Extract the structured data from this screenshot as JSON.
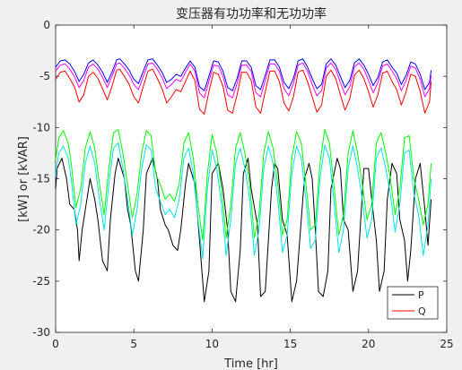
{
  "chart_data": {
    "type": "line",
    "title": "变压器有功功率和无功功率",
    "xlabel": "Time [hr]",
    "ylabel": "[kW] or [kVAR]",
    "xlim": [
      0,
      25
    ],
    "ylim": [
      -30,
      0
    ],
    "xticks": [
      0,
      5,
      10,
      15,
      20,
      25
    ],
    "yticks": [
      0,
      -5,
      -10,
      -15,
      -20,
      -25,
      -30
    ],
    "xtick_labels": [
      "0",
      "5",
      "10",
      "15",
      "20",
      "25"
    ],
    "ytick_labels": [
      "0",
      "-5",
      "-10",
      "-15",
      "-20",
      "-25",
      "-30"
    ],
    "grid": false,
    "legend": {
      "position": "bottom-right",
      "entries": [
        "P",
        "Q"
      ]
    },
    "colors": {
      "P": "#000000",
      "Q": "#ff0000",
      "series3": "#00ff00",
      "series4": "#00e5e5",
      "series5": "#0000ff",
      "series6": "#ff00ff"
    },
    "series": [
      {
        "name": "P",
        "color": "#000000",
        "x": [
          0,
          0.1,
          0.4,
          0.7,
          0.9,
          1.2,
          1.4,
          1.5,
          1.7,
          2.0,
          2.2,
          2.5,
          2.7,
          3.0,
          3.3,
          3.5,
          3.8,
          4.0,
          4.4,
          4.6,
          4.8,
          5.1,
          5.3,
          5.6,
          5.8,
          6.2,
          6.5,
          6.7,
          7.0,
          7.2,
          7.5,
          7.8,
          8.0,
          8.3,
          8.5,
          8.9,
          9.2,
          9.5,
          9.8,
          10.0,
          10.4,
          10.7,
          11.0,
          11.2,
          11.5,
          11.8,
          12.0,
          12.3,
          12.5,
          12.9,
          13.1,
          13.4,
          13.8,
          14.0,
          14.2,
          14.5,
          14.8,
          15.1,
          15.4,
          15.6,
          15.9,
          16.2,
          16.4,
          16.6,
          16.8,
          17.1,
          17.4,
          17.6,
          18.0,
          18.2,
          18.4,
          18.7,
          19.0,
          19.3,
          19.5,
          19.7,
          20.0,
          20.2,
          20.5,
          20.7,
          21.0,
          21.2,
          21.5,
          21.8,
          22.0,
          22.3,
          22.5,
          22.7,
          23.0,
          23.3,
          23.6,
          23.8,
          24.0
        ],
        "y": [
          -16,
          -14,
          -13,
          -15,
          -17.5,
          -18,
          -20,
          -23,
          -20,
          -17,
          -15,
          -17,
          -19,
          -23,
          -24,
          -19,
          -14.5,
          -13,
          -15,
          -18,
          -19.5,
          -24,
          -25,
          -20,
          -14.5,
          -13,
          -15,
          -18,
          -19.5,
          -20,
          -21.5,
          -22,
          -20,
          -15.5,
          -13.5,
          -15.5,
          -21,
          -27,
          -24,
          -14.5,
          -13.5,
          -16,
          -20,
          -26,
          -27,
          -22,
          -14.5,
          -13,
          -16,
          -19.5,
          -26.5,
          -26,
          -16,
          -13.5,
          -14,
          -19,
          -20.5,
          -27,
          -25,
          -21,
          -15,
          -13.5,
          -15,
          -20,
          -26,
          -26.5,
          -24,
          -16,
          -13,
          -14,
          -19,
          -20,
          -26,
          -24,
          -19,
          -14,
          -14,
          -17,
          -21,
          -26,
          -24,
          -17,
          -13.5,
          -14.5,
          -19,
          -21,
          -25,
          -22,
          -15,
          -13.5,
          -18,
          -21.5,
          -17
        ]
      },
      {
        "name": "Q",
        "color": "#ff0000",
        "x": [
          0,
          0.3,
          0.6,
          0.9,
          1.2,
          1.5,
          1.8,
          2.1,
          2.4,
          2.7,
          3.0,
          3.3,
          3.6,
          3.9,
          4.1,
          4.4,
          4.7,
          5.0,
          5.3,
          5.6,
          5.9,
          6.2,
          6.5,
          6.8,
          7.1,
          7.4,
          7.7,
          8.0,
          8.3,
          8.6,
          8.9,
          9.2,
          9.5,
          9.8,
          10.1,
          10.4,
          10.7,
          11.0,
          11.3,
          11.6,
          11.9,
          12.2,
          12.5,
          12.8,
          13.1,
          13.4,
          13.7,
          14.0,
          14.3,
          14.6,
          14.9,
          15.2,
          15.5,
          15.8,
          16.1,
          16.4,
          16.7,
          17.0,
          17.3,
          17.6,
          17.9,
          18.2,
          18.5,
          18.8,
          19.1,
          19.4,
          19.7,
          20.0,
          20.3,
          20.6,
          20.9,
          21.2,
          21.5,
          21.8,
          22.1,
          22.4,
          22.7,
          23.0,
          23.3,
          23.6,
          23.9,
          24.0
        ],
        "y": [
          -5.3,
          -4.6,
          -4.5,
          -5.2,
          -6.0,
          -7.5,
          -6.8,
          -5.0,
          -4.6,
          -5.2,
          -6.2,
          -7.3,
          -6.0,
          -4.4,
          -4.3,
          -5.0,
          -5.8,
          -7.0,
          -7.6,
          -6.0,
          -4.5,
          -4.3,
          -5.2,
          -6.2,
          -7.6,
          -7.0,
          -6.3,
          -6.5,
          -5.5,
          -4.5,
          -5.4,
          -8.2,
          -8.7,
          -6.5,
          -4.6,
          -4.8,
          -6.0,
          -8.3,
          -8.6,
          -6.8,
          -4.6,
          -4.6,
          -5.4,
          -8.0,
          -8.6,
          -6.5,
          -4.5,
          -4.5,
          -5.5,
          -7.6,
          -8.4,
          -7.0,
          -4.6,
          -4.4,
          -5.5,
          -7.0,
          -8.5,
          -7.8,
          -5.0,
          -4.4,
          -5.2,
          -6.8,
          -8.3,
          -7.2,
          -4.9,
          -4.4,
          -5.2,
          -6.5,
          -8.0,
          -6.8,
          -4.7,
          -4.5,
          -5.5,
          -6.3,
          -7.8,
          -6.5,
          -4.8,
          -5.0,
          -6.5,
          -8.6,
          -7.5,
          -5.5
        ]
      },
      {
        "name": "",
        "color": "#00ff00",
        "x": [
          0,
          0.2,
          0.5,
          0.8,
          1.0,
          1.3,
          1.6,
          1.9,
          2.2,
          2.5,
          2.8,
          3.1,
          3.4,
          3.7,
          4.0,
          4.3,
          4.6,
          4.9,
          5.2,
          5.5,
          5.8,
          6.1,
          6.4,
          6.7,
          7.0,
          7.3,
          7.6,
          7.9,
          8.2,
          8.5,
          8.8,
          9.1,
          9.4,
          9.7,
          10.0,
          10.3,
          10.6,
          10.9,
          11.2,
          11.5,
          11.8,
          12.1,
          12.4,
          12.7,
          13.0,
          13.3,
          13.6,
          13.9,
          14.2,
          14.5,
          14.8,
          15.1,
          15.4,
          15.7,
          16.0,
          16.3,
          16.6,
          16.9,
          17.2,
          17.5,
          17.8,
          18.1,
          18.4,
          18.7,
          19.0,
          19.3,
          19.6,
          19.9,
          20.2,
          20.5,
          20.8,
          21.1,
          21.4,
          21.7,
          22.0,
          22.3,
          22.6,
          22.9,
          23.2,
          23.5,
          23.8,
          24.0
        ],
        "y": [
          -13.2,
          -11.0,
          -10.3,
          -11.5,
          -13.5,
          -17.8,
          -16.0,
          -12.0,
          -10.4,
          -12.0,
          -15.5,
          -18.5,
          -14.0,
          -10.5,
          -10.2,
          -12.5,
          -15.5,
          -18.8,
          -16.5,
          -12.5,
          -10.3,
          -10.8,
          -14.5,
          -15.6,
          -17.0,
          -16.5,
          -17.2,
          -15.5,
          -11.5,
          -10.5,
          -13.0,
          -17.5,
          -21.0,
          -14.5,
          -10.7,
          -12.5,
          -16.0,
          -20.8,
          -17.5,
          -12.0,
          -10.5,
          -12.5,
          -15.5,
          -20.8,
          -18.5,
          -12.5,
          -10.4,
          -12.0,
          -15.5,
          -20.5,
          -19.0,
          -13.0,
          -10.4,
          -11.5,
          -15.5,
          -20.0,
          -19.5,
          -13.5,
          -10.2,
          -11.5,
          -15.8,
          -20.5,
          -18.5,
          -12.5,
          -10.3,
          -12.5,
          -15.5,
          -19.0,
          -17.5,
          -11.5,
          -10.5,
          -12.5,
          -15.0,
          -18.5,
          -16.0,
          -11.0,
          -10.8,
          -15.0,
          -17.0,
          -19.5,
          -17.5,
          -13.5
        ]
      },
      {
        "name": "",
        "color": "#00e5e5",
        "x": [
          0,
          0.2,
          0.5,
          0.8,
          1.0,
          1.3,
          1.6,
          1.9,
          2.2,
          2.5,
          2.8,
          3.1,
          3.4,
          3.7,
          4.0,
          4.3,
          4.6,
          4.9,
          5.2,
          5.5,
          5.8,
          6.1,
          6.4,
          6.7,
          7.0,
          7.3,
          7.6,
          7.9,
          8.2,
          8.5,
          8.8,
          9.1,
          9.4,
          9.7,
          10.0,
          10.3,
          10.6,
          10.9,
          11.2,
          11.5,
          11.8,
          12.1,
          12.4,
          12.7,
          13.0,
          13.3,
          13.6,
          13.9,
          14.2,
          14.5,
          14.8,
          15.1,
          15.4,
          15.7,
          16.0,
          16.3,
          16.6,
          16.9,
          17.2,
          17.5,
          17.8,
          18.1,
          18.4,
          18.7,
          19.0,
          19.3,
          19.6,
          19.9,
          20.2,
          20.5,
          20.8,
          21.1,
          21.4,
          21.7,
          22.0,
          22.3,
          22.6,
          22.9,
          23.2,
          23.5,
          23.8,
          24.0
        ],
        "y": [
          -14.8,
          -12.5,
          -11.8,
          -13.0,
          -15.0,
          -19.5,
          -17.5,
          -13.5,
          -11.8,
          -13.5,
          -17.0,
          -20.0,
          -15.5,
          -12.0,
          -11.5,
          -14.0,
          -17.0,
          -20.5,
          -18.0,
          -14.0,
          -11.7,
          -12.2,
          -16.0,
          -17.2,
          -18.5,
          -18.0,
          -18.8,
          -17.0,
          -13.0,
          -12.0,
          -14.5,
          -19.0,
          -22.8,
          -16.0,
          -12.2,
          -14.0,
          -17.5,
          -22.5,
          -19.0,
          -13.5,
          -12.0,
          -14.0,
          -17.0,
          -22.5,
          -20.0,
          -14.0,
          -11.8,
          -13.5,
          -17.0,
          -22.2,
          -20.5,
          -14.5,
          -11.8,
          -13.0,
          -17.0,
          -21.8,
          -21.0,
          -15.0,
          -11.7,
          -13.0,
          -17.3,
          -22.2,
          -20.0,
          -14.0,
          -11.8,
          -14.0,
          -17.0,
          -20.8,
          -19.0,
          -13.0,
          -12.0,
          -14.0,
          -16.5,
          -20.2,
          -17.5,
          -12.5,
          -12.2,
          -16.5,
          -18.5,
          -22.5,
          -19.5,
          -15.0
        ]
      },
      {
        "name": "",
        "color": "#0000ff",
        "x": [
          0,
          0.3,
          0.6,
          0.9,
          1.2,
          1.5,
          1.8,
          2.1,
          2.4,
          2.7,
          3.0,
          3.3,
          3.6,
          3.9,
          4.1,
          4.4,
          4.7,
          5.0,
          5.3,
          5.6,
          5.9,
          6.2,
          6.5,
          6.8,
          7.1,
          7.4,
          7.7,
          8.0,
          8.3,
          8.6,
          8.9,
          9.2,
          9.5,
          9.8,
          10.1,
          10.4,
          10.7,
          11.0,
          11.3,
          11.6,
          11.9,
          12.2,
          12.5,
          12.8,
          13.1,
          13.4,
          13.7,
          14.0,
          14.3,
          14.6,
          14.9,
          15.2,
          15.5,
          15.8,
          16.1,
          16.4,
          16.7,
          17.0,
          17.3,
          17.6,
          17.9,
          18.2,
          18.5,
          18.8,
          19.1,
          19.4,
          19.7,
          20.0,
          20.3,
          20.6,
          20.9,
          21.2,
          21.5,
          21.8,
          22.1,
          22.4,
          22.7,
          23.0,
          23.3,
          23.6,
          23.9,
          24.0
        ],
        "y": [
          -4.1,
          -3.5,
          -3.4,
          -3.8,
          -4.5,
          -5.5,
          -4.8,
          -3.7,
          -3.4,
          -3.9,
          -4.6,
          -5.6,
          -4.6,
          -3.4,
          -3.3,
          -3.8,
          -4.4,
          -5.3,
          -5.7,
          -4.5,
          -3.4,
          -3.3,
          -3.9,
          -4.6,
          -5.6,
          -5.3,
          -4.8,
          -5.0,
          -4.2,
          -3.5,
          -4.1,
          -6.0,
          -6.4,
          -5.0,
          -3.5,
          -3.6,
          -4.5,
          -6.1,
          -6.4,
          -5.2,
          -3.5,
          -3.5,
          -4.1,
          -5.9,
          -6.3,
          -4.9,
          -3.4,
          -3.4,
          -4.1,
          -5.6,
          -6.2,
          -5.2,
          -3.5,
          -3.3,
          -4.1,
          -5.2,
          -6.2,
          -5.8,
          -3.8,
          -3.3,
          -3.9,
          -5.0,
          -6.1,
          -5.4,
          -3.7,
          -3.3,
          -3.9,
          -4.8,
          -5.9,
          -5.1,
          -3.6,
          -3.4,
          -4.1,
          -4.7,
          -5.8,
          -4.9,
          -3.6,
          -3.8,
          -4.8,
          -6.3,
          -5.6,
          -4.4
        ]
      },
      {
        "name": "",
        "color": "#ff00ff",
        "x": [
          0,
          0.3,
          0.6,
          0.9,
          1.2,
          1.5,
          1.8,
          2.1,
          2.4,
          2.7,
          3.0,
          3.3,
          3.6,
          3.9,
          4.1,
          4.4,
          4.7,
          5.0,
          5.3,
          5.6,
          5.9,
          6.2,
          6.5,
          6.8,
          7.1,
          7.4,
          7.7,
          8.0,
          8.3,
          8.6,
          8.9,
          9.2,
          9.5,
          9.8,
          10.1,
          10.4,
          10.7,
          11.0,
          11.3,
          11.6,
          11.9,
          12.2,
          12.5,
          12.8,
          13.1,
          13.4,
          13.7,
          14.0,
          14.3,
          14.6,
          14.9,
          15.2,
          15.5,
          15.8,
          16.1,
          16.4,
          16.7,
          17.0,
          17.3,
          17.6,
          17.9,
          18.2,
          18.5,
          18.8,
          19.1,
          19.4,
          19.7,
          20.0,
          20.3,
          20.6,
          20.9,
          21.2,
          21.5,
          21.8,
          22.1,
          22.4,
          22.7,
          23.0,
          23.3,
          23.6,
          23.9,
          24.0
        ],
        "y": [
          -4.5,
          -3.9,
          -3.8,
          -4.3,
          -5.0,
          -6.1,
          -5.4,
          -4.1,
          -3.8,
          -4.3,
          -5.1,
          -6.1,
          -5.0,
          -3.8,
          -3.7,
          -4.2,
          -4.9,
          -5.8,
          -6.3,
          -5.0,
          -3.8,
          -3.7,
          -4.3,
          -5.1,
          -6.2,
          -5.8,
          -5.3,
          -5.5,
          -4.6,
          -3.8,
          -4.5,
          -6.6,
          -7.1,
          -5.5,
          -3.9,
          -4.0,
          -5.0,
          -6.8,
          -7.1,
          -5.7,
          -3.9,
          -3.9,
          -4.5,
          -6.6,
          -7.0,
          -5.4,
          -3.8,
          -3.8,
          -4.5,
          -6.2,
          -6.9,
          -5.7,
          -3.9,
          -3.7,
          -4.5,
          -5.8,
          -6.9,
          -6.4,
          -4.2,
          -3.7,
          -4.3,
          -5.6,
          -6.8,
          -6.0,
          -4.1,
          -3.7,
          -4.3,
          -5.4,
          -6.6,
          -5.6,
          -4.0,
          -3.8,
          -4.5,
          -5.2,
          -6.4,
          -5.4,
          -4.0,
          -4.2,
          -5.3,
          -7.0,
          -6.2,
          -4.9
        ]
      }
    ]
  }
}
